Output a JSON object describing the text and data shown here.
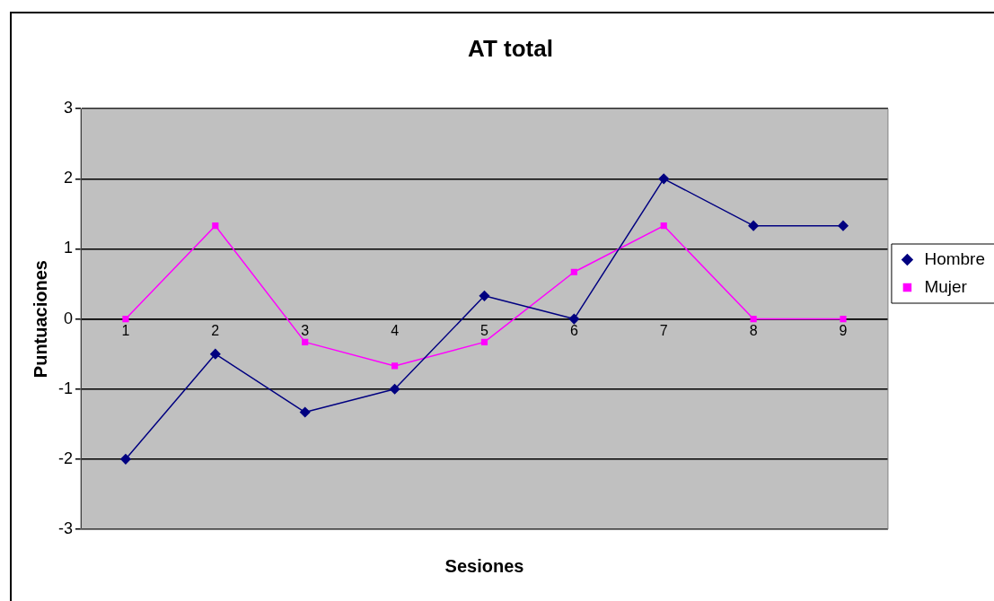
{
  "chart_data": {
    "type": "line",
    "title": "AT total",
    "xlabel": "Sesiones",
    "ylabel": "Puntuaciones",
    "categories": [
      "1",
      "2",
      "3",
      "4",
      "5",
      "6",
      "7",
      "8",
      "9"
    ],
    "series": [
      {
        "name": "Hombre",
        "color": "#000080",
        "marker": "diamond",
        "values": [
          -2,
          -0.5,
          -1.33,
          -1,
          0.33,
          0,
          2,
          1.33,
          1.33
        ]
      },
      {
        "name": "Mujer",
        "color": "#ff00ff",
        "marker": "square",
        "values": [
          0,
          1.33,
          -0.33,
          -0.67,
          -0.33,
          0.67,
          1.33,
          0,
          0
        ]
      }
    ],
    "ylim": [
      -3,
      3
    ],
    "yticks": [
      -3,
      -2,
      -1,
      0,
      1,
      2,
      3
    ],
    "grid": "y",
    "legend": "right"
  }
}
